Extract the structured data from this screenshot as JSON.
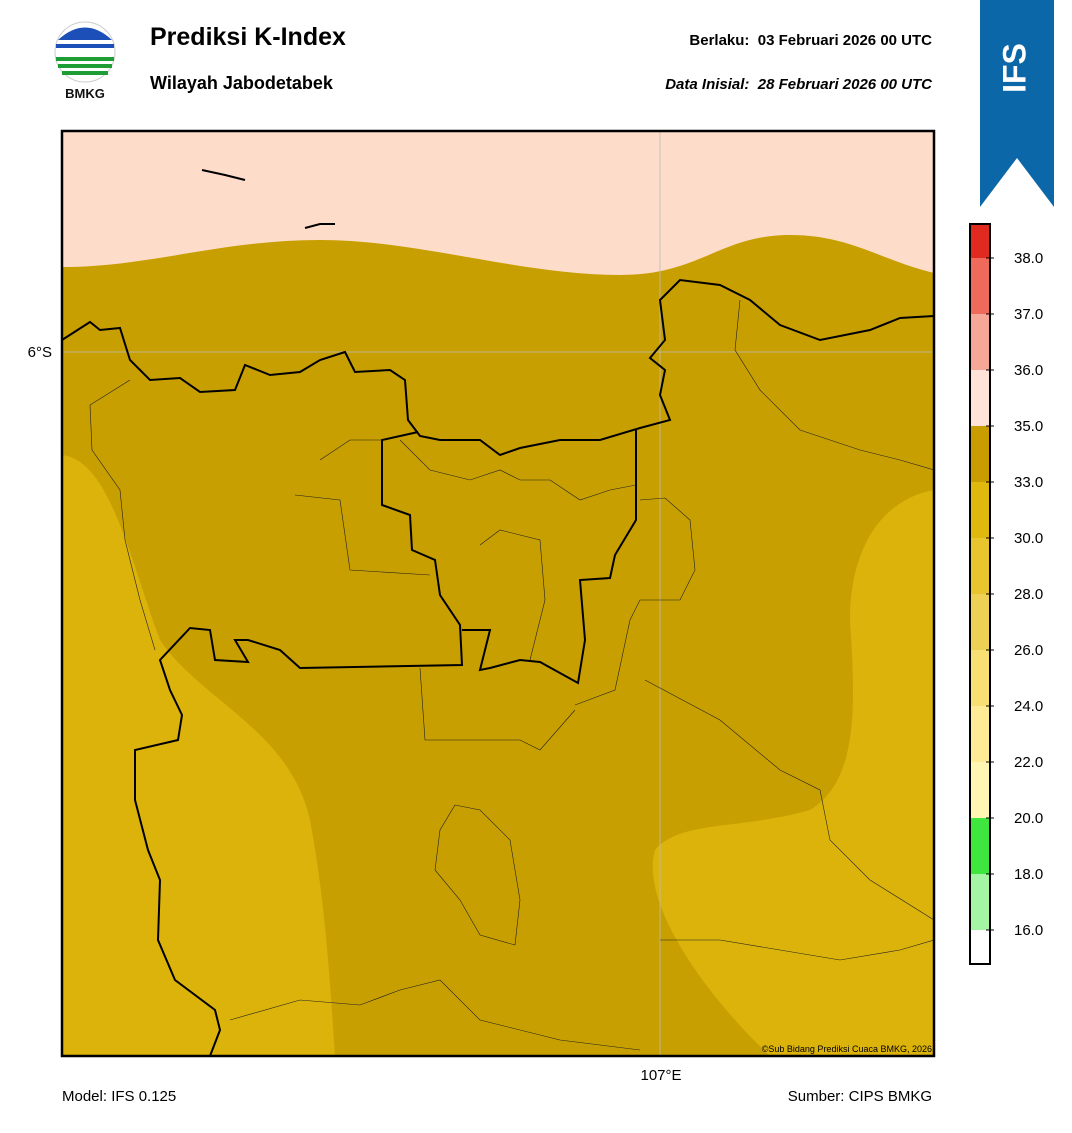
{
  "header": {
    "logo_text": "BMKG",
    "title": "Prediksi K-Index",
    "subtitle": "Wilayah Jabodetabek",
    "valid": "Berlaku:  03 Februari 2026 00 UTC",
    "init": "Data Inisial:  28 Februari 2026 00 UTC",
    "badge": "IFS"
  },
  "map": {
    "lat_label": "6°S",
    "lon_label": "107°E",
    "credit": "©Sub Bidang Prediksi Cuaca BMKG, 2026"
  },
  "colorbar": {
    "ticks": [
      {
        "value": 16,
        "label": "16.0"
      },
      {
        "value": 18,
        "label": "18.0"
      },
      {
        "value": 20,
        "label": "20.0"
      },
      {
        "value": 22,
        "label": "22.0"
      },
      {
        "value": 24,
        "label": "24.0"
      },
      {
        "value": 26,
        "label": "26.0"
      },
      {
        "value": 28,
        "label": "28.0"
      },
      {
        "value": 30,
        "label": "30.0"
      },
      {
        "value": 33,
        "label": "33.0"
      },
      {
        "value": 35,
        "label": "35.0"
      },
      {
        "value": 36,
        "label": "36.0"
      },
      {
        "value": 37,
        "label": "37.0"
      },
      {
        "value": 38,
        "label": "38.0"
      }
    ],
    "colors": [
      "#ffffff",
      "#a4f5a4",
      "#3ee63e",
      "#fff6b4",
      "#ffeb96",
      "#f8df74",
      "#eed055",
      "#e8c52f",
      "#deb80c",
      "#c99d00",
      "#ffe3d8",
      "#f7a797",
      "#ef6a5a",
      "#e02a20"
    ]
  },
  "footer": {
    "model": "Model: IFS 0.125",
    "source": "Sumber: CIPS BMKG"
  }
}
